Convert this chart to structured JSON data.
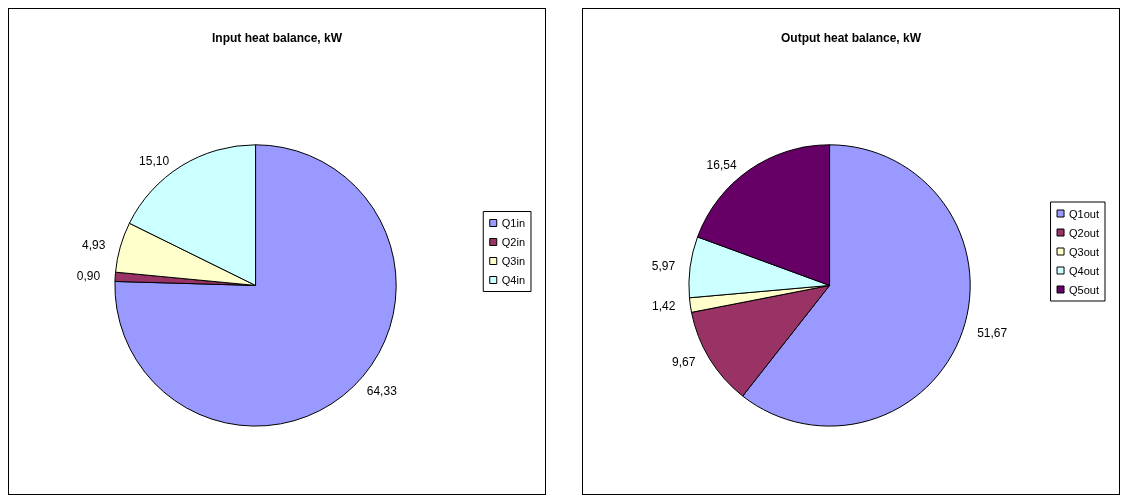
{
  "chart_data": [
    {
      "type": "pie",
      "title": "Input heat balance, kW",
      "categories": [
        "Q1in",
        "Q2in",
        "Q3in",
        "Q4in"
      ],
      "values": [
        64.33,
        0.9,
        4.93,
        15.1
      ],
      "value_labels": [
        "64,33",
        "0,90",
        "4,93",
        "15,10"
      ],
      "colors": [
        "#9999ff",
        "#993366",
        "#ffffcc",
        "#ccffff"
      ],
      "legend": "right"
    },
    {
      "type": "pie",
      "title": "Output heat balance, kW",
      "categories": [
        "Q1out",
        "Q2out",
        "Q3out",
        "Q4out",
        "Q5out"
      ],
      "values": [
        51.67,
        9.67,
        1.42,
        5.97,
        16.54
      ],
      "value_labels": [
        "51,67",
        "9,67",
        "1,42",
        "5,97",
        "16,54"
      ],
      "colors": [
        "#9999ff",
        "#993366",
        "#ffffcc",
        "#ccffff",
        "#660066"
      ],
      "legend": "right"
    }
  ]
}
